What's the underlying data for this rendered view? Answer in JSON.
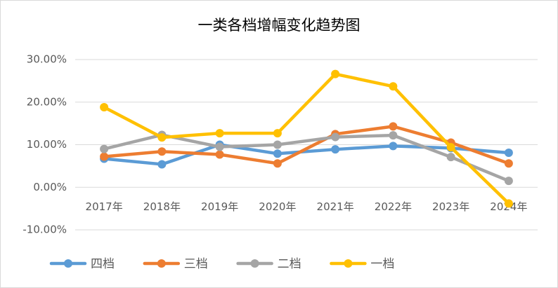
{
  "chart_data": {
    "type": "line",
    "title": "一类各档增幅变化趋势图",
    "categories": [
      "2017年",
      "2018年",
      "2019年",
      "2020年",
      "2021年",
      "2022年",
      "2023年",
      "2024年"
    ],
    "series": [
      {
        "name": "四档",
        "color": "#5b9bd5",
        "values": [
          6.7,
          5.4,
          10.0,
          7.9,
          8.9,
          9.7,
          9.2,
          8.1
        ]
      },
      {
        "name": "三档",
        "color": "#ed7d31",
        "values": [
          7.2,
          8.4,
          7.7,
          5.6,
          12.5,
          14.3,
          10.5,
          5.6
        ]
      },
      {
        "name": "二档",
        "color": "#a5a5a5",
        "values": [
          9.0,
          12.3,
          9.5,
          10.0,
          11.8,
          12.2,
          7.1,
          1.5
        ]
      },
      {
        "name": "一档",
        "color": "#ffc000",
        "values": [
          18.8,
          11.7,
          12.7,
          12.7,
          26.6,
          23.7,
          9.4,
          -3.8
        ]
      }
    ],
    "ylim": [
      -10,
      30
    ],
    "yticks": [
      {
        "value": -10,
        "label": "-10.00%"
      },
      {
        "value": 0,
        "label": "0.00%"
      },
      {
        "value": 10,
        "label": "10.00%"
      },
      {
        "value": 20,
        "label": "20.00%"
      },
      {
        "value": 30,
        "label": "30.00%"
      }
    ],
    "grid": true,
    "legend": "bottom"
  }
}
